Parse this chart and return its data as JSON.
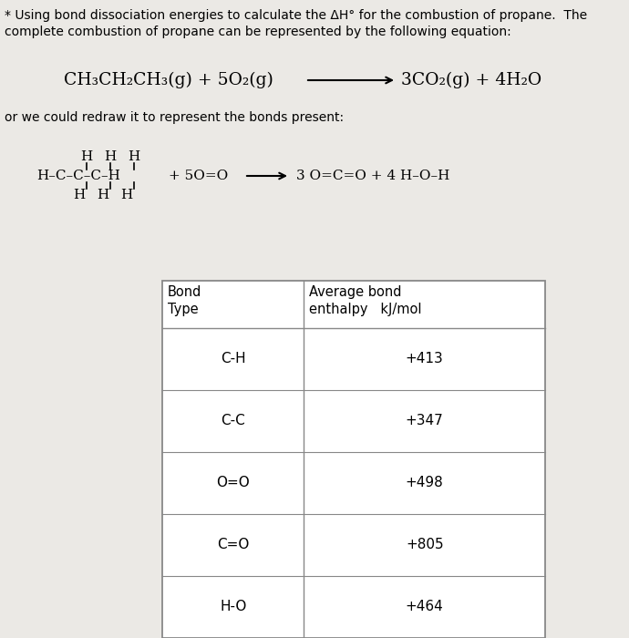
{
  "background_color": "#ebe9e5",
  "text_color": "#000000",
  "fontsize_header": 10.0,
  "fontsize_equation": 13.5,
  "fontsize_struct": 11.0,
  "fontsize_table": 10.5,
  "table_data": [
    [
      "C-H",
      "+413"
    ],
    [
      "C-C",
      "+347"
    ],
    [
      "O=O",
      "+498"
    ],
    [
      "C=O",
      "+805"
    ],
    [
      "H-O",
      "+464"
    ]
  ],
  "line1": "* Using bond dissociation energies to calculate the ΔH° for the combustion of propane.  The",
  "line2": "complete combustion of propane can be represented by the following equation:",
  "redraw_line": "or we could redraw it to represent the bonds present:",
  "eq_left": "CH₃CH₂CH₃(g) + 5O₂(g)",
  "eq_right": "3CO₂(g) + 4H₂O",
  "struct_mid": "H–C–C–C–H",
  "struct_plus": "+ 5O=O",
  "struct_right": "3 O=C=O + 4 H–O–H",
  "top_hhh": "H    H    H",
  "bot_hhh": "H    H    H"
}
